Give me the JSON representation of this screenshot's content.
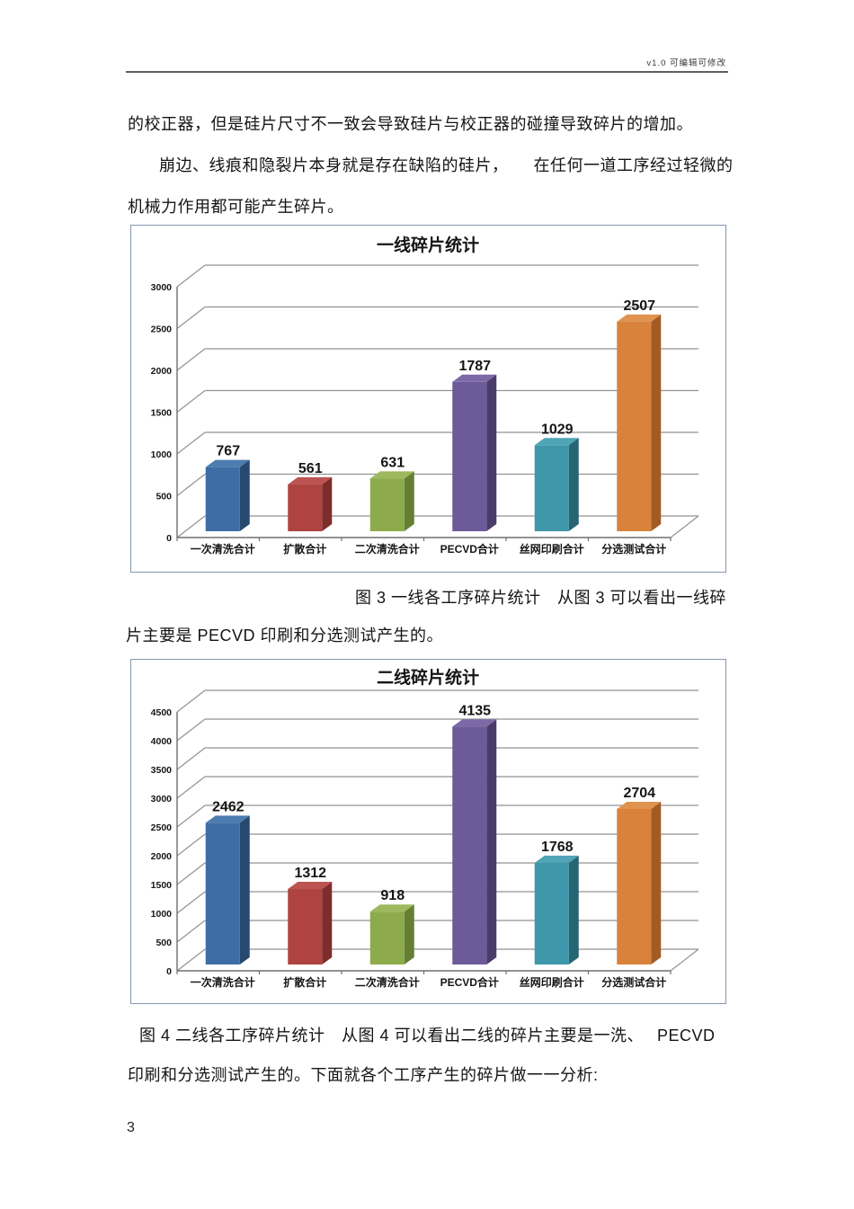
{
  "page": {
    "header": {
      "version_note": "v1.0  可编辑可修改"
    },
    "body": {
      "p1": "的校正器，但是硅片尺寸不一致会导致硅片与校正器的碰撞导致碎片的增加。",
      "p2": "崩边、线痕和隐裂片本身就是存在缺陷的硅片，　　在任何一道工序经过轻微的",
      "p3": "机械力作用都可能产生碎片。",
      "caption1_line1": "图 3 一线各工序碎片统计　从图 3 可以看出一线碎",
      "caption1_line2": "片主要是 PECVD 印刷和分选测试产生的。",
      "caption2_line1": "图 4 二线各工序碎片统计　从图 4 可以看出二线的碎片主要是一洗、　 PECVD",
      "caption2_line2": "印刷和分选测试产生的。下面就各个工序产生的碎片做一一分析:"
    },
    "page_number": "3"
  },
  "chart_data": [
    {
      "type": "bar",
      "variant": "3d-column",
      "title": "一线碎片统计",
      "categories": [
        "一次清洗合计",
        "扩散合计",
        "二次清洗合计",
        "PECVD合计",
        "丝网印刷合计",
        "分选测试合计"
      ],
      "values": [
        767,
        561,
        631,
        1787,
        1029,
        2507
      ],
      "ylim": [
        0,
        3000
      ],
      "ytick_step": 500,
      "grid": true,
      "legend": "none",
      "series_colors": [
        {
          "front": "#3E6DA5",
          "top": "#4C7CB0",
          "side": "#27496F"
        },
        {
          "front": "#AE4340",
          "top": "#BC5451",
          "side": "#7E2D2B"
        },
        {
          "front": "#8DAB4B",
          "top": "#9CB95E",
          "side": "#647F33"
        },
        {
          "front": "#6D5A98",
          "top": "#7C69A6",
          "side": "#4A3B6B"
        },
        {
          "front": "#3E96AA",
          "top": "#50A4B5",
          "side": "#266573"
        },
        {
          "front": "#D9823C",
          "top": "#E0924F",
          "side": "#A35B24"
        }
      ]
    },
    {
      "type": "bar",
      "variant": "3d-column",
      "title": "二线碎片统计",
      "categories": [
        "一次清洗合计",
        "扩散合计",
        "二次清洗合计",
        "PECVD合计",
        "丝网印刷合计",
        "分选测试合计"
      ],
      "values": [
        2462,
        1312,
        918,
        4135,
        1768,
        2704
      ],
      "ylim": [
        0,
        4500
      ],
      "ytick_step": 500,
      "grid": true,
      "legend": "none",
      "series_colors": [
        {
          "front": "#3E6DA5",
          "top": "#4C7CB0",
          "side": "#27496F"
        },
        {
          "front": "#AE4340",
          "top": "#BC5451",
          "side": "#7E2D2B"
        },
        {
          "front": "#8DAB4B",
          "top": "#9CB95E",
          "side": "#647F33"
        },
        {
          "front": "#6D5A98",
          "top": "#7C69A6",
          "side": "#4A3B6B"
        },
        {
          "front": "#3E96AA",
          "top": "#50A4B5",
          "side": "#266573"
        },
        {
          "front": "#D9823C",
          "top": "#E0924F",
          "side": "#A35B24"
        }
      ]
    }
  ]
}
